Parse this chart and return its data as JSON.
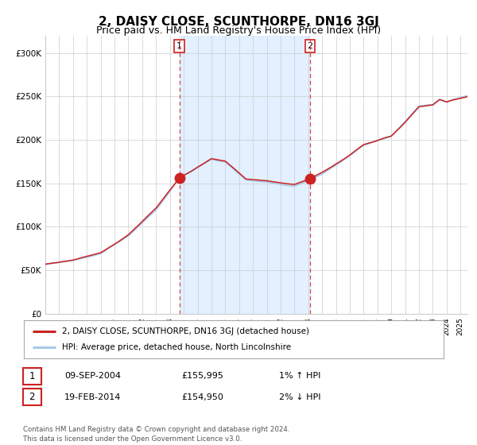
{
  "title": "2, DAISY CLOSE, SCUNTHORPE, DN16 3GJ",
  "subtitle": "Price paid vs. HM Land Registry's House Price Index (HPI)",
  "title_fontsize": 11,
  "subtitle_fontsize": 9,
  "background_color": "#ffffff",
  "plot_bg_color": "#ffffff",
  "grid_color": "#cccccc",
  "ylim": [
    0,
    320000
  ],
  "yticks": [
    0,
    50000,
    100000,
    150000,
    200000,
    250000,
    300000
  ],
  "ytick_labels": [
    "£0",
    "£50K",
    "£100K",
    "£150K",
    "£200K",
    "£250K",
    "£300K"
  ],
  "hpi_line_color": "#a8c8e8",
  "price_line_color": "#cc2222",
  "marker_color": "#cc2222",
  "vline_color": "#dd4444",
  "shade_color": "#ddeeff",
  "point1_date_num": 2004.69,
  "point1_value": 155995,
  "point2_date_num": 2014.12,
  "point2_value": 154950,
  "legend_price_label": "2, DAISY CLOSE, SCUNTHORPE, DN16 3GJ (detached house)",
  "legend_hpi_label": "HPI: Average price, detached house, North Lincolnshire",
  "table_row1": [
    "1",
    "09-SEP-2004",
    "£155,995",
    "1% ↑ HPI"
  ],
  "table_row2": [
    "2",
    "19-FEB-2014",
    "£154,950",
    "2% ↓ HPI"
  ],
  "footer": "Contains HM Land Registry data © Crown copyright and database right 2024.\nThis data is licensed under the Open Government Licence v3.0.",
  "start_year": 1995.0,
  "end_year": 2025.5
}
